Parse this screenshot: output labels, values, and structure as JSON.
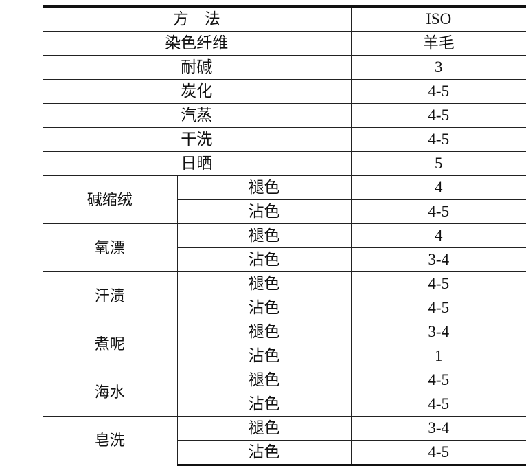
{
  "header": {
    "method": "方　法",
    "standard": "ISO"
  },
  "fiber_row": {
    "label": "染色纤维",
    "value": "羊毛"
  },
  "simple_rows": [
    {
      "label": "耐碱",
      "value": "3"
    },
    {
      "label": "炭化",
      "value": "4-5"
    },
    {
      "label": "汽蒸",
      "value": "4-5"
    },
    {
      "label": "干洗",
      "value": "4-5"
    },
    {
      "label": "日晒",
      "value": "5"
    }
  ],
  "group_rows": [
    {
      "label": "碱缩绒",
      "items": [
        {
          "sub": "褪色",
          "value": "4"
        },
        {
          "sub": "沾色",
          "value": "4-5"
        }
      ]
    },
    {
      "label": "氧漂",
      "items": [
        {
          "sub": "褪色",
          "value": "4"
        },
        {
          "sub": "沾色",
          "value": "3-4"
        }
      ]
    },
    {
      "label": "汗渍",
      "items": [
        {
          "sub": "褪色",
          "value": "4-5"
        },
        {
          "sub": "沾色",
          "value": "4-5"
        }
      ]
    },
    {
      "label": "煮呢",
      "items": [
        {
          "sub": "褪色",
          "value": "3-4"
        },
        {
          "sub": "沾色",
          "value": "1"
        }
      ]
    },
    {
      "label": "海水",
      "items": [
        {
          "sub": "褪色",
          "value": "4-5"
        },
        {
          "sub": "沾色",
          "value": "4-5"
        }
      ]
    },
    {
      "label": "皂洗",
      "items": [
        {
          "sub": "褪色",
          "value": "3-4"
        },
        {
          "sub": "沾色",
          "value": "4-5"
        }
      ]
    }
  ]
}
